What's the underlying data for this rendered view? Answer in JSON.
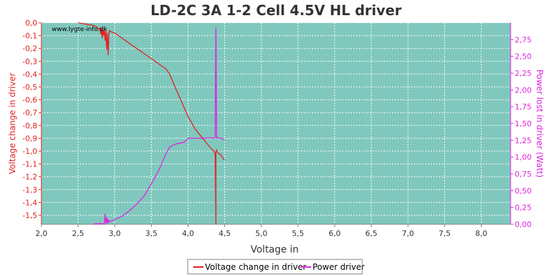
{
  "chart_data": {
    "type": "line",
    "title": "LD-2C 3A 1-2 Cell 4.5V HL driver",
    "xlabel": "Voltage in",
    "ylabel_left": "Voltage change in driver",
    "ylabel_right": "Power lost in driver (Watt)",
    "watermark": "www.lygte-info.dk",
    "xlim": [
      2.0,
      8.4
    ],
    "ylim_left": [
      -1.57,
      0.0
    ],
    "ylim_right": [
      0.0,
      3.0
    ],
    "x_ticks": [
      "2,0",
      "2,5",
      "3,0",
      "3,5",
      "4,0",
      "4,5",
      "5,0",
      "5,5",
      "6,0",
      "6,5",
      "7,0",
      "7,5",
      "8,0"
    ],
    "y_left_ticks": [
      "0,0",
      "-0,1",
      "-0,2",
      "-0,3",
      "-0,4",
      "-0,5",
      "-0,6",
      "-0,7",
      "-0,8",
      "-0,9",
      "-1,0",
      "-1,1",
      "-1,2",
      "-1,3",
      "-1,4",
      "-1,5"
    ],
    "y_right_ticks": [
      "0,00",
      "0,25",
      "0,50",
      "0,75",
      "1,00",
      "1,25",
      "1,50",
      "1,75",
      "2,00",
      "2,25",
      "2,50",
      "2,75"
    ],
    "grid": true,
    "legend_position": "bottom-center",
    "background_color": "#80c8be",
    "series": [
      {
        "name": "Voltage change in driver",
        "color": "#e02020",
        "axis": "left",
        "x": [
          2.5,
          2.6,
          2.7,
          2.75,
          2.78,
          2.8,
          2.81,
          2.82,
          2.83,
          2.84,
          2.85,
          2.86,
          2.87,
          2.88,
          2.89,
          2.9,
          2.91,
          2.92,
          2.93,
          2.95,
          3.0,
          3.1,
          3.2,
          3.3,
          3.4,
          3.5,
          3.6,
          3.7,
          3.75,
          3.8,
          3.9,
          4.0,
          4.1,
          4.2,
          4.3,
          4.35,
          4.37,
          4.38,
          4.38,
          4.39,
          4.4,
          4.45,
          4.48,
          4.5
        ],
        "y": [
          0.0,
          -0.01,
          -0.02,
          -0.03,
          -0.05,
          -0.04,
          -0.09,
          -0.04,
          -0.12,
          -0.05,
          -0.1,
          -0.05,
          -0.14,
          -0.07,
          -0.21,
          -0.08,
          -0.25,
          -0.09,
          -0.06,
          -0.07,
          -0.08,
          -0.12,
          -0.16,
          -0.2,
          -0.24,
          -0.28,
          -0.32,
          -0.36,
          -0.4,
          -0.47,
          -0.6,
          -0.73,
          -0.83,
          -0.9,
          -0.97,
          -1.0,
          -1.02,
          -1.57,
          -1.0,
          -0.99,
          -1.01,
          -1.03,
          -1.06,
          -1.07
        ]
      },
      {
        "name": "Power driver",
        "color": "#e020e0",
        "axis": "right",
        "x": [
          2.7,
          2.75,
          2.78,
          2.8,
          2.82,
          2.84,
          2.86,
          2.87,
          2.88,
          2.89,
          2.9,
          2.91,
          2.92,
          2.95,
          3.0,
          3.1,
          3.2,
          3.3,
          3.4,
          3.5,
          3.6,
          3.7,
          3.75,
          3.8,
          3.85,
          3.9,
          3.95,
          4.0,
          4.1,
          4.2,
          4.3,
          4.35,
          4.37,
          4.38,
          4.39,
          4.4,
          4.45,
          4.48,
          4.5
        ],
        "y": [
          0.0,
          0.01,
          0.0,
          0.02,
          0.0,
          0.01,
          0.0,
          0.15,
          0.02,
          0.1,
          0.01,
          0.07,
          0.03,
          0.05,
          0.07,
          0.12,
          0.2,
          0.3,
          0.42,
          0.6,
          0.8,
          1.05,
          1.15,
          1.18,
          1.2,
          1.21,
          1.22,
          1.28,
          1.28,
          1.28,
          1.29,
          1.28,
          1.29,
          2.92,
          1.28,
          1.29,
          1.28,
          1.27,
          1.25
        ]
      }
    ]
  }
}
